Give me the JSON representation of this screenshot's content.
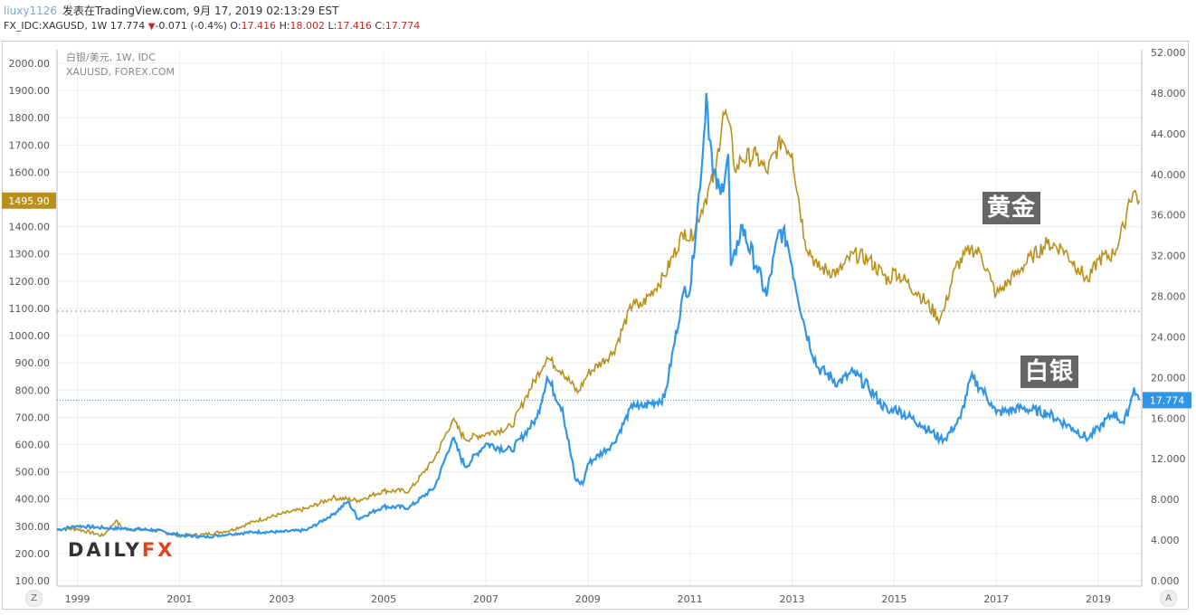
{
  "header": {
    "user": "liuxy1126",
    "published": "发表在TradingView.com, 9月 17, 2019 02:13:29 EST",
    "symbol_line_prefix": "FX_IDC:XAGUSD, 1W 17.774",
    "change": "-0.071 (-0.4%)",
    "o_label": "O:",
    "o_value": "17.416",
    "h_label": "H:",
    "h_value": "18.002",
    "l_label": "L:",
    "l_value": "17.416",
    "c_label": "C:",
    "c_value": "17.774"
  },
  "legend": {
    "line1": "白银/美元, 1W, IDC",
    "line2": "XAUUSD, FOREX.COM"
  },
  "annotations": {
    "gold_label": "黄金",
    "silver_label": "白银"
  },
  "logo": {
    "daily": "DAILY",
    "fx": "FX"
  },
  "corner_buttons": {
    "left": "Z",
    "right": "A"
  },
  "colors": {
    "gold": "#b8901a",
    "silver": "#2f95e8",
    "grid": "#ececec",
    "axis_text": "#555555"
  },
  "chart_data": {
    "type": "line",
    "x_tick_labels": [
      "1999",
      "2001",
      "2003",
      "2005",
      "2007",
      "2009",
      "2011",
      "2013",
      "2015",
      "2017",
      "2019"
    ],
    "x_range": [
      1998.6,
      2019.85
    ],
    "left_axis": {
      "range": [
        100,
        2000
      ],
      "ticks": [
        "2000.00",
        "1900.00",
        "1800.00",
        "1700.00",
        "1600.00",
        "1500.00",
        "1400.00",
        "1300.00",
        "1200.00",
        "1100.00",
        "1000.00",
        "900.00",
        "800.00",
        "700.00",
        "600.00",
        "500.00",
        "400.00",
        "300.00",
        "200.00",
        "100.00"
      ],
      "last_value_label": "1495.90",
      "reference_line": 1090
    },
    "right_axis": {
      "range": [
        0,
        52
      ],
      "ticks": [
        "52.000",
        "48.000",
        "44.000",
        "40.000",
        "36.000",
        "32.000",
        "28.000",
        "24.000",
        "20.000",
        "16.000",
        "12.000",
        "8.000",
        "4.000",
        "0.000"
      ],
      "last_value_label": "17.774"
    },
    "series": [
      {
        "name": "黄金",
        "axis": "left",
        "x": [
          1998.6,
          1999.0,
          1999.5,
          1999.75,
          1999.9,
          2000.5,
          2001.0,
          2001.5,
          2002.0,
          2002.5,
          2003.0,
          2003.5,
          2004.0,
          2004.5,
          2005.0,
          2005.5,
          2006.0,
          2006.35,
          2006.6,
          2007.0,
          2007.5,
          2007.8,
          2008.2,
          2008.5,
          2008.8,
          2009.0,
          2009.5,
          2009.9,
          2010.0,
          2010.5,
          2010.9,
          2011.0,
          2011.3,
          2011.5,
          2011.65,
          2011.75,
          2011.9,
          2012.0,
          2012.3,
          2012.5,
          2012.8,
          2013.0,
          2013.25,
          2013.5,
          2013.9,
          2014.2,
          2014.5,
          2014.9,
          2015.0,
          2015.5,
          2015.9,
          2016.0,
          2016.2,
          2016.5,
          2016.7,
          2016.9,
          2017.0,
          2017.5,
          2017.7,
          2018.0,
          2018.3,
          2018.6,
          2018.8,
          2019.0,
          2019.3,
          2019.5,
          2019.6,
          2019.7,
          2019.8
        ],
        "y": [
          290,
          290,
          265,
          320,
          290,
          285,
          265,
          270,
          285,
          320,
          345,
          365,
          405,
          395,
          430,
          430,
          550,
          690,
          620,
          640,
          665,
          780,
          920,
          870,
          790,
          860,
          940,
          1130,
          1100,
          1220,
          1390,
          1350,
          1500,
          1600,
          1820,
          1790,
          1600,
          1650,
          1660,
          1600,
          1720,
          1670,
          1350,
          1250,
          1230,
          1300,
          1280,
          1200,
          1240,
          1150,
          1060,
          1110,
          1250,
          1320,
          1300,
          1200,
          1150,
          1250,
          1290,
          1340,
          1320,
          1250,
          1200,
          1280,
          1300,
          1400,
          1500,
          1530,
          1496
        ]
      },
      {
        "name": "白银",
        "axis": "right",
        "x": [
          1998.6,
          1999.0,
          1999.5,
          2000.0,
          2000.5,
          2001.0,
          2001.5,
          2002.0,
          2002.5,
          2003.0,
          2003.5,
          2004.0,
          2004.3,
          2004.5,
          2005.0,
          2005.5,
          2006.0,
          2006.35,
          2006.6,
          2007.0,
          2007.5,
          2008.0,
          2008.2,
          2008.5,
          2008.75,
          2008.9,
          2009.0,
          2009.5,
          2009.9,
          2010.0,
          2010.5,
          2010.9,
          2011.0,
          2011.25,
          2011.32,
          2011.45,
          2011.6,
          2011.75,
          2011.8,
          2011.9,
          2012.0,
          2012.3,
          2012.5,
          2012.75,
          2012.9,
          2013.0,
          2013.25,
          2013.5,
          2013.9,
          2014.2,
          2014.5,
          2014.9,
          2015.0,
          2015.5,
          2015.9,
          2016.0,
          2016.3,
          2016.5,
          2016.7,
          2016.9,
          2017.0,
          2017.5,
          2018.0,
          2018.5,
          2018.8,
          2019.0,
          2019.3,
          2019.5,
          2019.6,
          2019.7,
          2019.8
        ],
        "y": [
          5.0,
          5.4,
          5.2,
          5.1,
          5.0,
          4.5,
          4.3,
          4.6,
          4.8,
          4.8,
          5.0,
          6.5,
          7.8,
          6.1,
          7.3,
          7.2,
          9.2,
          14.0,
          11.2,
          13.5,
          12.8,
          16.0,
          20.0,
          17.0,
          10.0,
          9.5,
          11.5,
          13.5,
          17.5,
          17.0,
          18.0,
          29.0,
          28.5,
          42.0,
          48.0,
          40.0,
          38.0,
          42.0,
          31.0,
          32.0,
          35.0,
          31.0,
          28.0,
          34.5,
          33.5,
          31.0,
          25.0,
          21.0,
          19.5,
          20.5,
          19.0,
          16.5,
          17.0,
          15.5,
          14.0,
          14.0,
          16.0,
          20.0,
          19.0,
          17.5,
          16.5,
          17.0,
          16.5,
          15.0,
          14.0,
          15.0,
          16.5,
          15.5,
          17.0,
          19.0,
          17.774
        ]
      }
    ],
    "grid": true
  }
}
